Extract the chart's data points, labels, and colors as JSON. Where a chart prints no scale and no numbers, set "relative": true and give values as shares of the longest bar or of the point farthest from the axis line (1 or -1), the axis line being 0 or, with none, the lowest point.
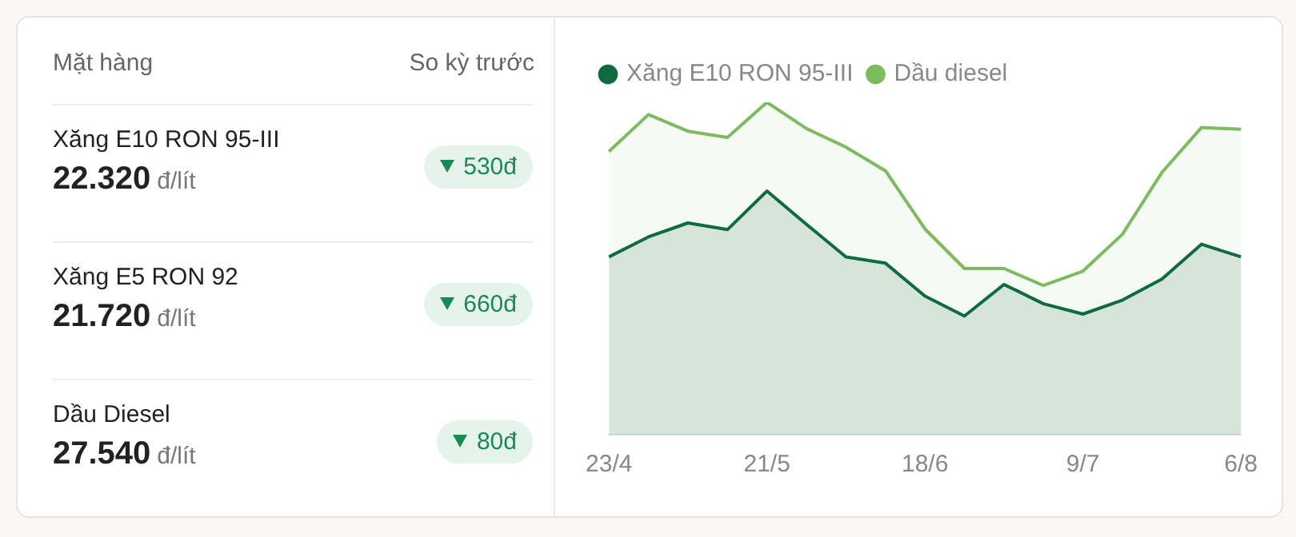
{
  "chart_data": [
    {
      "type": "other",
      "categories": [
        "Xăng E10 RON 95-III",
        "Xăng E5 RON 92",
        "Dầu Diesel"
      ],
      "annotations": [
        "Mặt hàng",
        "So kỳ trước",
        "22.320",
        "đ/lít",
        "530đ",
        "21.720",
        "đ/lít",
        "660đ",
        "27.540",
        "đ/lít",
        "80đ"
      ]
    },
    {
      "type": "area",
      "relative": true,
      "legend": "top left",
      "marker": "none",
      "grid": false,
      "categories": [
        "23/4",
        null,
        null,
        null,
        "21/5",
        null,
        null,
        null,
        "18/6",
        null,
        null,
        null,
        "9/7",
        null,
        null,
        null,
        "6/8"
      ],
      "series": [
        {
          "name": "Xăng E10 RON 95-III",
          "color": "#0f6b3f",
          "values": [
            0.535,
            0.595,
            0.637,
            0.617,
            0.733,
            0.633,
            0.535,
            0.516,
            0.417,
            0.357,
            0.452,
            0.394,
            0.363,
            0.405,
            0.468,
            0.573,
            0.535
          ]
        },
        {
          "name": "Dầu diesel",
          "color": "#7dbb5e",
          "values": [
            0.852,
            0.963,
            0.913,
            0.894,
            1,
            0.921,
            0.865,
            0.794,
            0.619,
            0.5,
            0.5,
            0.449,
            0.492,
            0.603,
            0.789,
            0.924,
            0.919
          ]
        }
      ]
    }
  ]
}
